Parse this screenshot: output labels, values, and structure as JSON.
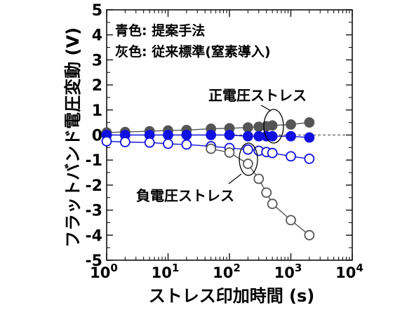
{
  "chart_data": {
    "type": "scatter",
    "xlabel": "ストレス印加時間 (s)",
    "ylabel": "フラットバンド電圧変動 (V)",
    "xscale": "log",
    "xlim": [
      1,
      10000
    ],
    "ylim": [
      -5,
      5
    ],
    "x_ticks": [
      {
        "value": 1,
        "base": "10",
        "exp": "0"
      },
      {
        "value": 10,
        "base": "10",
        "exp": "1"
      },
      {
        "value": 100,
        "base": "10",
        "exp": "2"
      },
      {
        "value": 1000,
        "base": "10",
        "exp": "3"
      },
      {
        "value": 10000,
        "base": "10",
        "exp": "4"
      }
    ],
    "y_ticks": [
      5,
      4,
      3,
      2,
      1,
      0,
      -1,
      -2,
      -3,
      -4,
      -5
    ],
    "legend": {
      "line1": "青色: 提案手法",
      "line2": "灰色: 従来標準(窒素導入)",
      "line1_color": "#1a1ad6",
      "line2_color": "#555555"
    },
    "annotations": {
      "positive": "正電圧ストレス",
      "negative": "負電圧ストレス"
    },
    "colors": {
      "blue": "#1010e0",
      "gray_fill": "#555555",
      "gray_line": "#555555"
    },
    "series": [
      {
        "style": "gray-filled",
        "x": [
          1,
          2,
          5,
          10,
          20,
          50,
          100,
          200,
          300,
          400,
          500,
          1000,
          2000
        ],
        "y": [
          0.1,
          0.12,
          0.15,
          0.18,
          0.2,
          0.25,
          0.27,
          0.3,
          0.33,
          0.35,
          0.38,
          0.42,
          0.5
        ]
      },
      {
        "style": "blue-filled",
        "x": [
          1,
          2,
          5,
          10,
          20,
          50,
          100,
          200,
          300,
          400,
          500,
          1000,
          2000
        ],
        "y": [
          0.0,
          0.0,
          0.0,
          0.0,
          0.0,
          0.0,
          0.0,
          -0.05,
          -0.05,
          -0.05,
          -0.05,
          -0.05,
          -0.1
        ]
      },
      {
        "style": "blue-open",
        "x": [
          1,
          2,
          5,
          10,
          20,
          50,
          100,
          200,
          300,
          400,
          500,
          1000,
          2000
        ],
        "y": [
          -0.25,
          -0.28,
          -0.3,
          -0.35,
          -0.38,
          -0.45,
          -0.52,
          -0.58,
          -0.63,
          -0.68,
          -0.72,
          -0.85,
          -0.95
        ]
      },
      {
        "style": "gray-open",
        "x": [
          50,
          100,
          200,
          300,
          400,
          500,
          1000,
          2000
        ],
        "y": [
          -0.55,
          -0.7,
          -1.15,
          -1.75,
          -2.3,
          -2.75,
          -3.4,
          -4.0
        ]
      }
    ]
  }
}
